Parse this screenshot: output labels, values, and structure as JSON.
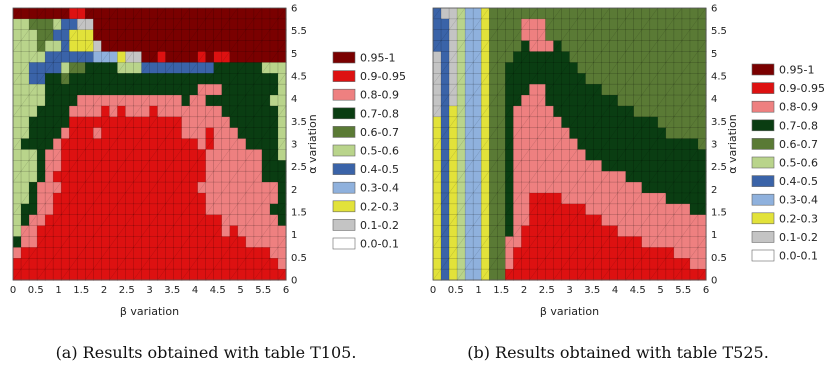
{
  "chart_data": [
    {
      "type": "heatmap",
      "xlabel": "β variation",
      "ylabel": "α variation",
      "xlim": [
        0,
        6
      ],
      "ylim": [
        0,
        6
      ],
      "xticks": [
        "0",
        "0.5",
        "1",
        "1.5",
        "2",
        "2.5",
        "3",
        "3.5",
        "4",
        "4.5",
        "5",
        "5.5",
        "6"
      ],
      "yticks": [
        "0",
        "0.5",
        "1",
        "1.5",
        "2",
        "2.5",
        "3",
        "3.5",
        "4",
        "4.5",
        "5",
        "5.5",
        "6"
      ],
      "legend": [
        {
          "label": "0.95-1",
          "color": "#7a0000"
        },
        {
          "label": "0.9-0.95",
          "color": "#dd1111"
        },
        {
          "label": "0.8-0.9",
          "color": "#ee8080"
        },
        {
          "label": "0.7-0.8",
          "color": "#0a3d12"
        },
        {
          "label": "0.6-0.7",
          "color": "#5a7a35"
        },
        {
          "label": "0.5-0.6",
          "color": "#b9d48b"
        },
        {
          "label": "0.4-0.5",
          "color": "#3a63a8"
        },
        {
          "label": "0.3-0.4",
          "color": "#8fb1dd"
        },
        {
          "label": "0.2-0.3",
          "color": "#e2e23a"
        },
        {
          "label": "0.1-0.2",
          "color": "#c4c4c4"
        },
        {
          "label": "0.0-0.1",
          "color": "#ffffff"
        }
      ],
      "grid_rows_top_to_bottom": [
        "000000011000000000000000000000000",
        "554445669900000000000000000000000",
        "555446688800000000000000000000000",
        "555455688890000000000000000000000",
        "555566666677789900100001011000000",
        "5566665443333555666666666333333555",
        "5566334333333333333333333333333335",
        "5555333333333333333333322233333335",
        "5555333322222222222223223333333355",
        "5553333222212122212222222233333335",
        "5533333111111111111112222223333335",
        "5533332111211111111112221222333335",
        "5333321111111111111111121222233335",
        "5553221111111111111111112222222335",
        "5553221111111111111111112222222333",
        "5553211111111111111111112222222333",
        "5532221111111111111111122222222223",
        "5532211111111111111111112222222223",
        "5332211111111111111111112222222233",
        "5322111111111111111111111122222223",
        "5221111111111111111111111121222222",
        "3221111111111111111111111111122222",
        "2111111111111111111111111111111122",
        "1111111111111111111111111111111112",
        "1111111111111111111111111111111111"
      ],
      "caption": "(a) Results obtained with table T105."
    },
    {
      "type": "heatmap",
      "xlabel": "β variation",
      "ylabel": "α variation",
      "xlim": [
        0,
        6
      ],
      "ylim": [
        0,
        6
      ],
      "xticks": [
        "0",
        "0.5",
        "1",
        "1.5",
        "2",
        "2.5",
        "3",
        "3.5",
        "4",
        "4.5",
        "5",
        "5.5",
        "6"
      ],
      "yticks": [
        "0",
        "0.5",
        "1",
        "1.5",
        "2",
        "2.5",
        "3",
        "3.5",
        "4",
        "4.5",
        "5",
        "5.5",
        "6"
      ],
      "legend": [
        {
          "label": "0.95-1",
          "color": "#7a0000"
        },
        {
          "label": "0.9-0.95",
          "color": "#dd1111"
        },
        {
          "label": "0.8-0.9",
          "color": "#ee8080"
        },
        {
          "label": "0.7-0.8",
          "color": "#0a3d12"
        },
        {
          "label": "0.6-0.7",
          "color": "#5a7a35"
        },
        {
          "label": "0.5-0.6",
          "color": "#b9d48b"
        },
        {
          "label": "0.4-0.5",
          "color": "#3a63a8"
        },
        {
          "label": "0.3-0.4",
          "color": "#8fb1dd"
        },
        {
          "label": "0.2-0.3",
          "color": "#e2e23a"
        },
        {
          "label": "0.1-0.2",
          "color": "#c4c4c4"
        },
        {
          "label": "0.0-0.1",
          "color": "#ffffff"
        }
      ],
      "grid_rows_top_to_bottom": [
        "6995778444444444444444444444444444",
        "6695778444422244444444444444444444",
        "6695778444422244444444444444444444",
        "6695778444432223444444444444444444",
        "9695778444333333344444444444444444",
        "9695778443333333334444444444444444",
        "9695778443333333333444444444444444",
        "9695778443332233333334444444444444",
        "9695778443322233333333344444444444",
        "9685778443222223333333333444444444",
        "8685778443222222333333333333444444",
        "8685778443222222233333333333344444",
        "8685778443222222223333333333333334",
        "8685778443222222222333333333333333",
        "8685778443222222222223333333333333",
        "8685778443222222222222223333333333",
        "8685778443222222222222222233333333",
        "8685778443221111222222222222233333",
        "8685778443221111111222222222222233",
        "8685778443221111111112222222222222",
        "8685778443211111111111122222222222",
        "8685778442211111111111111122222222",
        "8685778442111111111111111111112222",
        "8685778442111111111111111111111122",
        "8685778441111111111111111111111111"
      ],
      "caption": "(b) Results obtained with table T525."
    }
  ]
}
